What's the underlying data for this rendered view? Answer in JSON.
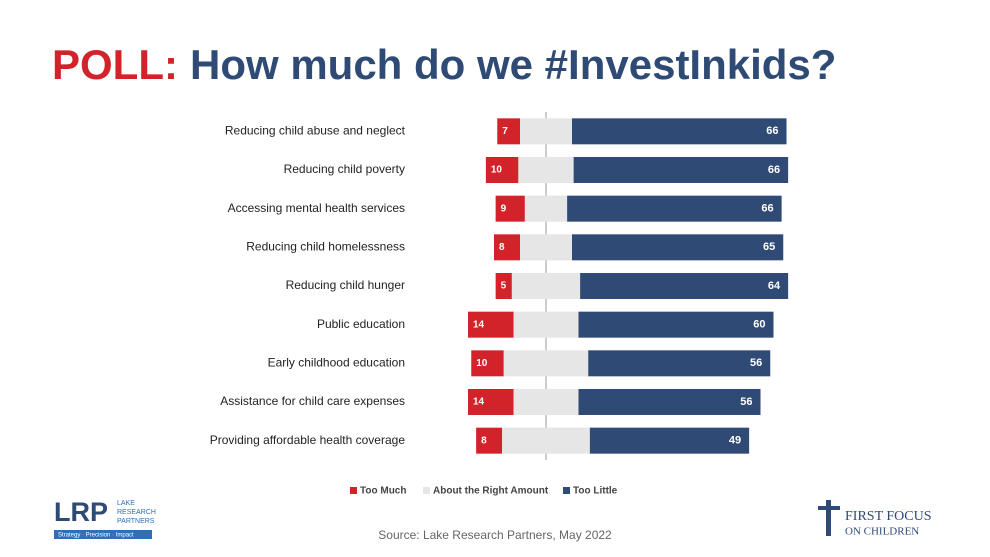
{
  "chart_data": {
    "type": "diverging-bar",
    "title_prefix": "POLL:",
    "title": "How much do we #InvestInkids?",
    "categories": [
      "Reducing child abuse and neglect",
      "Reducing child poverty",
      "Accessing mental health services",
      "Reducing child homelessness",
      "Reducing child hunger",
      "Public education",
      "Early childhood education",
      "Assistance for child care expenses",
      "Providing affordable health coverage"
    ],
    "series": [
      {
        "name": "Too Much",
        "color": "#d2232a",
        "values": [
          7,
          10,
          9,
          8,
          5,
          14,
          10,
          14,
          8
        ]
      },
      {
        "name": "About the Right Amount",
        "color": "#e6e6e6",
        "values": [
          16,
          17,
          13,
          16,
          21,
          20,
          26,
          20,
          27
        ]
      },
      {
        "name": "Too Little",
        "color": "#2e4a75",
        "values": [
          66,
          66,
          66,
          65,
          64,
          60,
          56,
          56,
          49
        ]
      }
    ],
    "xlim": [
      -40,
      80
    ],
    "source": "Source: Lake Research Partners, May 2022"
  },
  "logos": {
    "left_mark": "LRP",
    "left_name": [
      "LAKE",
      "RESEARCH",
      "PARTNERS"
    ],
    "left_tagline": "Strategy · Precision · Impact",
    "right_name": "FIRST FOCUS",
    "right_sub": "ON CHILDREN"
  }
}
